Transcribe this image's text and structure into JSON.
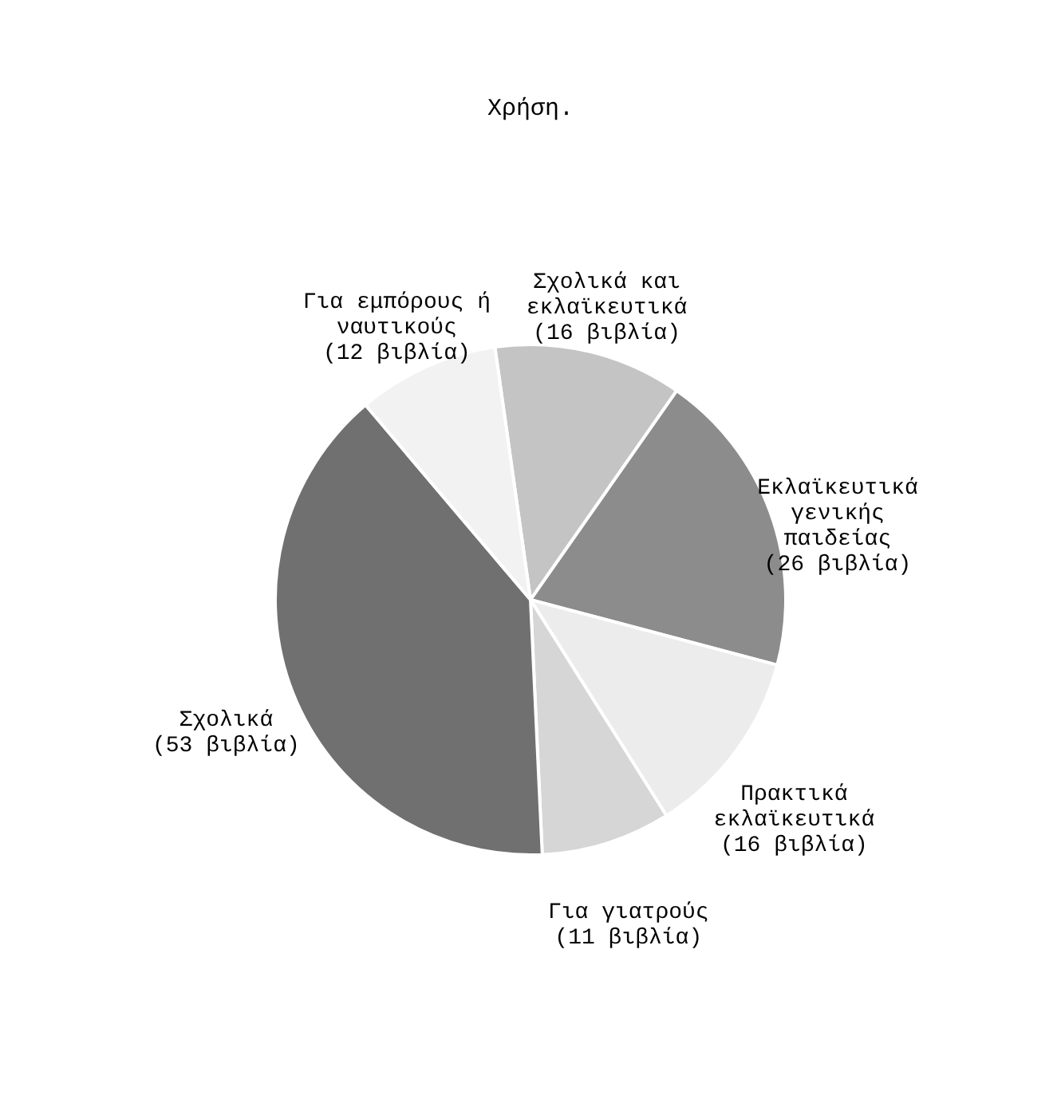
{
  "chart_data": {
    "type": "pie",
    "title": "Χρήση.",
    "categories": [
      "Σχολικά και εκλαϊκευτικά",
      "Εκλαϊκευτικά γενικής παιδείας",
      "Πρακτικά εκλαϊκευτικά",
      "Για γιατρούς",
      "Σχολικά",
      "Για εμπόρους ή ναυτικούς"
    ],
    "values": [
      16,
      26,
      16,
      11,
      53,
      12
    ],
    "value_labels": [
      "(16 βιβλία)",
      "(26 βιβλία)",
      "(16 βιβλία)",
      "(11 βιβλία)",
      "(53 βιβλία)",
      "(12 βιβλία)"
    ],
    "colors": [
      "#c4c4c4",
      "#8c8c8c",
      "#ececec",
      "#d6d6d6",
      "#707070",
      "#f2f2f2"
    ]
  }
}
